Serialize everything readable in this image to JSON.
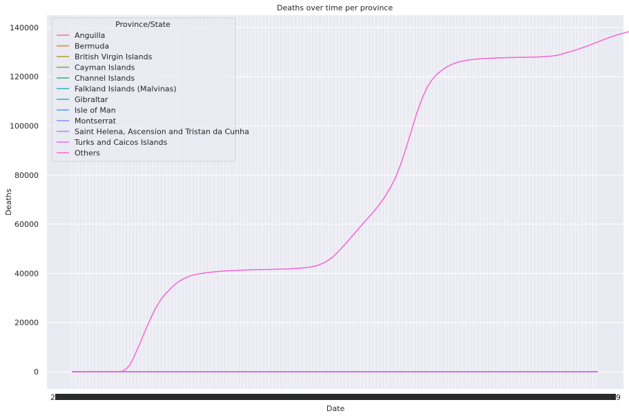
{
  "chart_data": {
    "type": "line",
    "title": "Deaths over time per province",
    "xlabel": "Date",
    "ylabel": "Deaths",
    "ylim": [
      -7000,
      145000
    ],
    "yticks": [
      0,
      20000,
      40000,
      60000,
      80000,
      100000,
      120000,
      140000
    ],
    "grid": true,
    "legend": {
      "title": "Province/State",
      "placement": "upper-left"
    },
    "x_start_label": "2",
    "x_end_label": "9",
    "x_points": 300,
    "series": [
      {
        "name": "Anguilla",
        "color": "#f77189",
        "values": [
          0,
          0
        ]
      },
      {
        "name": "Bermuda",
        "color": "#dc8932",
        "values": [
          0,
          9
        ]
      },
      {
        "name": "British Virgin Islands",
        "color": "#ae9d31",
        "values": [
          0,
          1
        ]
      },
      {
        "name": "Cayman Islands",
        "color": "#77ab31",
        "values": [
          0,
          1
        ]
      },
      {
        "name": "Channel Islands",
        "color": "#33b07a",
        "values": [
          0,
          48
        ]
      },
      {
        "name": "Falkland Islands (Malvinas)",
        "color": "#36ada4",
        "values": [
          0,
          0
        ]
      },
      {
        "name": "Gibraltar",
        "color": "#38aabf",
        "values": [
          0,
          0
        ]
      },
      {
        "name": "Isle of Man",
        "color": "#3ba3ec",
        "values": [
          0,
          25
        ]
      },
      {
        "name": "Montserrat",
        "color": "#6e9af4",
        "values": [
          0,
          1
        ]
      },
      {
        "name": "Saint Helena, Ascension and Tristan da Cunha",
        "color": "#a48cf4",
        "values": [
          0,
          0
        ]
      },
      {
        "name": "Turks and Caicos Islands",
        "color": "#e866f4",
        "values": [
          0,
          6
        ]
      },
      {
        "name": "Others",
        "color": "#f564d4",
        "values": [
          [
            0,
            0
          ],
          [
            27,
            0
          ],
          [
            29,
            300
          ],
          [
            31,
            1200
          ],
          [
            33,
            2800
          ],
          [
            35,
            5500
          ],
          [
            37,
            8800
          ],
          [
            39,
            12000
          ],
          [
            41,
            15500
          ],
          [
            43,
            18800
          ],
          [
            45,
            22000
          ],
          [
            47,
            25000
          ],
          [
            49,
            27500
          ],
          [
            51,
            29700
          ],
          [
            53,
            31500
          ],
          [
            55,
            33000
          ],
          [
            57,
            34400
          ],
          [
            59,
            35700
          ],
          [
            61,
            36800
          ],
          [
            63,
            37600
          ],
          [
            65,
            38300
          ],
          [
            67,
            38900
          ],
          [
            70,
            39500
          ],
          [
            74,
            40000
          ],
          [
            78,
            40400
          ],
          [
            82,
            40700
          ],
          [
            86,
            40950
          ],
          [
            90,
            41100
          ],
          [
            95,
            41250
          ],
          [
            100,
            41400
          ],
          [
            110,
            41600
          ],
          [
            120,
            41750
          ],
          [
            125,
            41900
          ],
          [
            130,
            42100
          ],
          [
            135,
            42500
          ],
          [
            139,
            43100
          ],
          [
            142,
            43900
          ],
          [
            145,
            45000
          ],
          [
            148,
            46500
          ],
          [
            151,
            48500
          ],
          [
            154,
            50800
          ],
          [
            157,
            53200
          ],
          [
            160,
            55700
          ],
          [
            163,
            58200
          ],
          [
            166,
            60700
          ],
          [
            169,
            63000
          ],
          [
            172,
            65500
          ],
          [
            175,
            68200
          ],
          [
            178,
            71200
          ],
          [
            181,
            74800
          ],
          [
            184,
            79000
          ],
          [
            187,
            84500
          ],
          [
            190,
            91000
          ],
          [
            193,
            98000
          ],
          [
            196,
            105000
          ],
          [
            199,
            111000
          ],
          [
            202,
            115800
          ],
          [
            205,
            119000
          ],
          [
            208,
            121300
          ],
          [
            211,
            123000
          ],
          [
            214,
            124300
          ],
          [
            217,
            125300
          ],
          [
            220,
            126000
          ],
          [
            224,
            126600
          ],
          [
            228,
            127000
          ],
          [
            235,
            127400
          ],
          [
            245,
            127700
          ],
          [
            255,
            127850
          ],
          [
            265,
            128000
          ],
          [
            272,
            128300
          ],
          [
            276,
            128700
          ],
          [
            280,
            129500
          ],
          [
            284,
            130300
          ],
          [
            288,
            131200
          ],
          [
            292,
            132200
          ],
          [
            296,
            133300
          ],
          [
            300,
            134400
          ],
          [
            305,
            135800
          ],
          [
            310,
            137000
          ],
          [
            315,
            138000
          ],
          [
            318,
            138500
          ]
        ]
      }
    ]
  }
}
